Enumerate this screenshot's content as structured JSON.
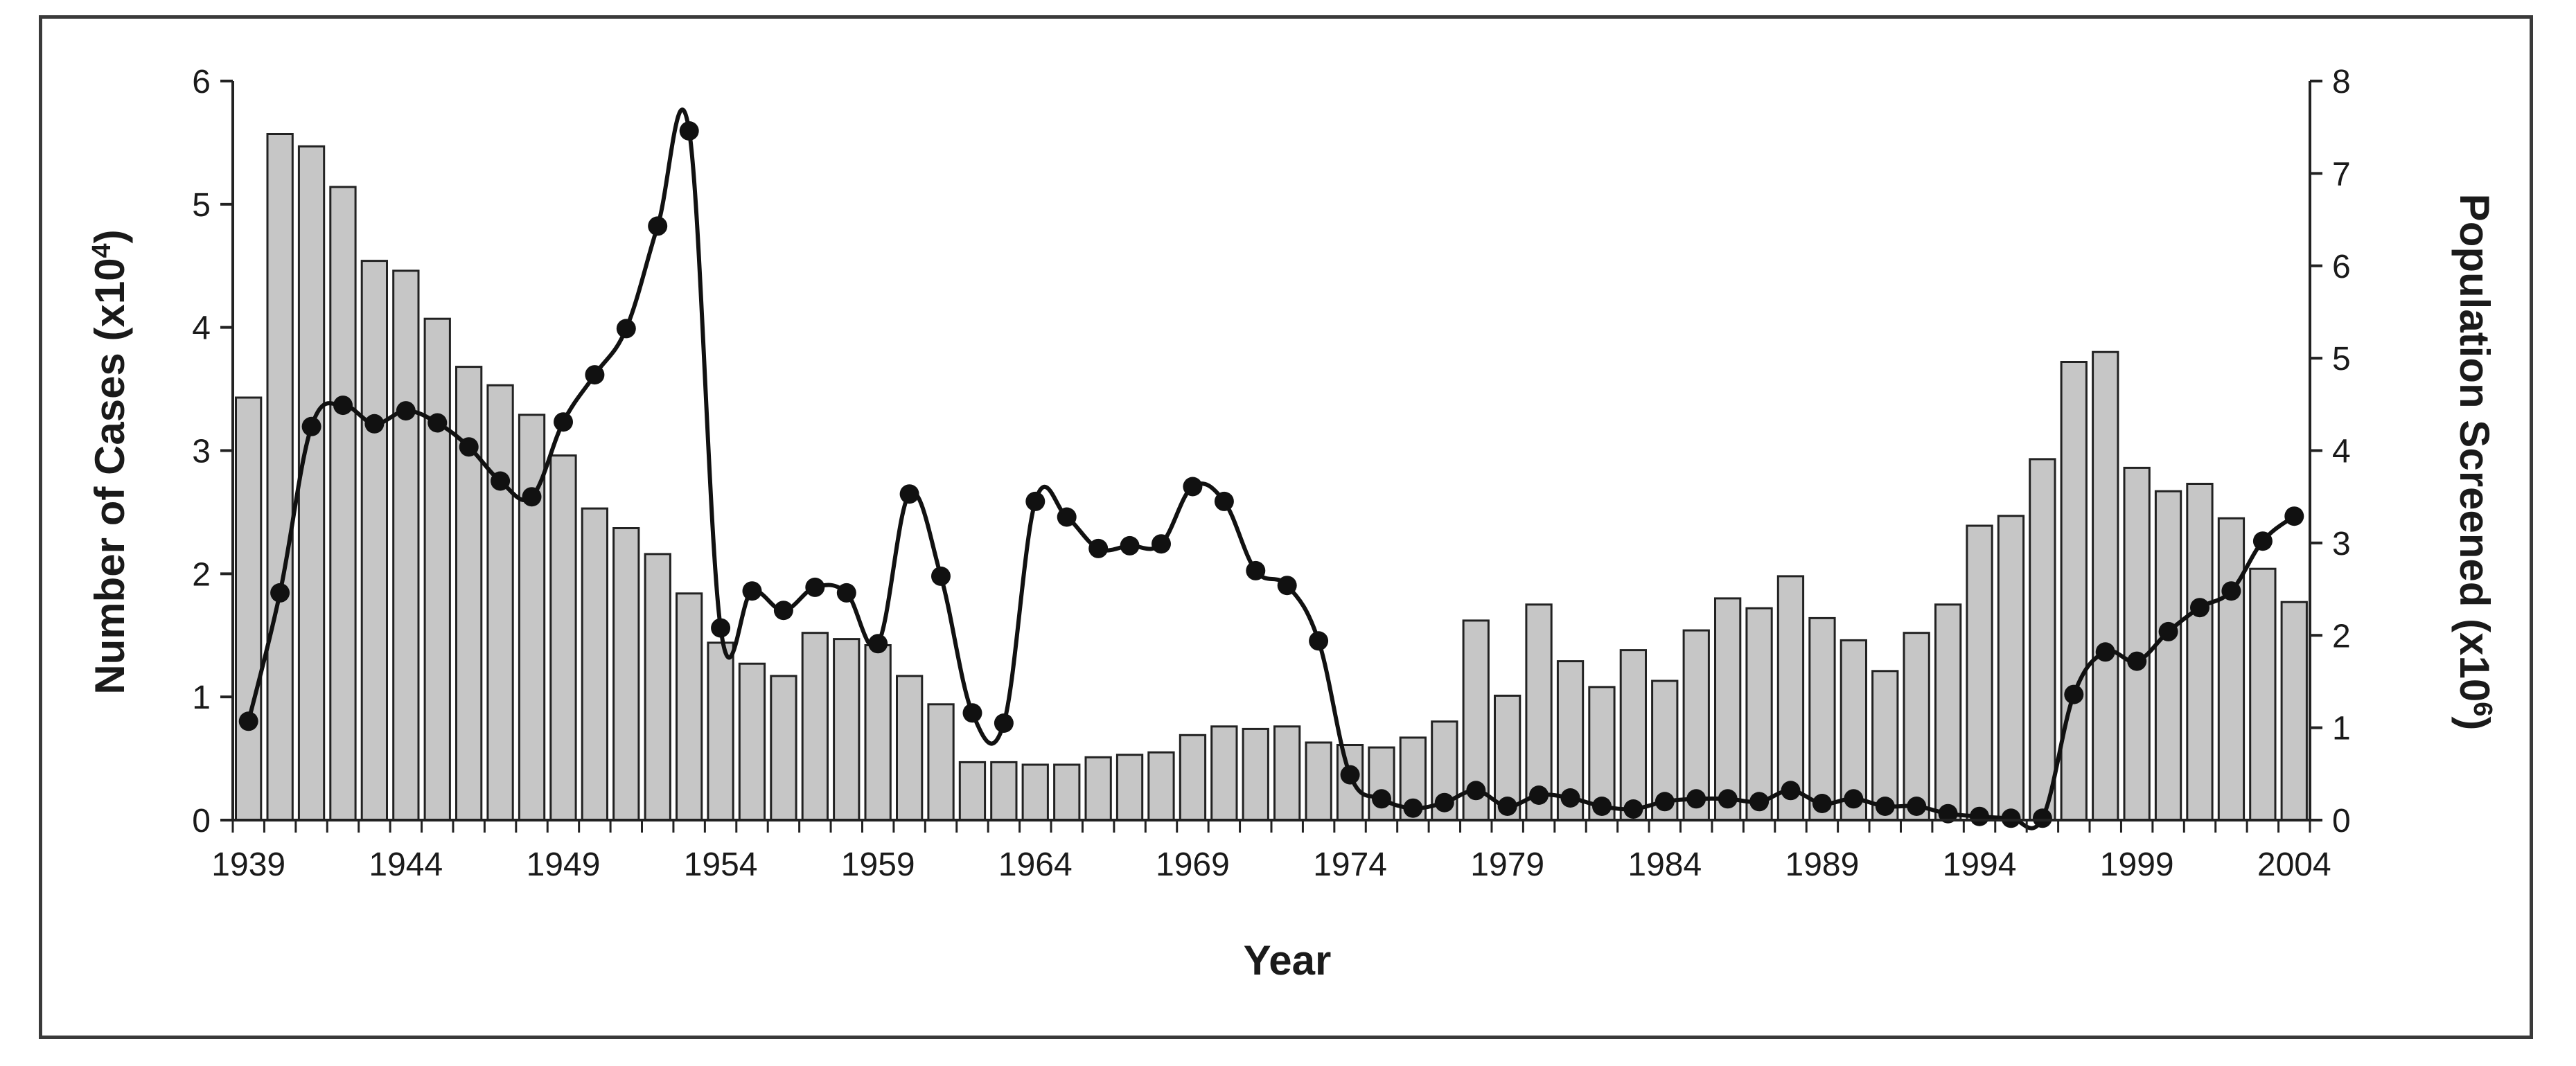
{
  "chart_data": {
    "type": "bar+line",
    "xlabel": "Year",
    "ylabel_left": {
      "text": "Number of Cases (x10",
      "sup": "4",
      "tail": ")"
    },
    "ylabel_right": {
      "text": "Population Screened (x10",
      "sup": "6",
      "tail": ")"
    },
    "x_tick_labels": [
      "1939",
      "1944",
      "1949",
      "1954",
      "1959",
      "1964",
      "1969",
      "1974",
      "1979",
      "1984",
      "1989",
      "1994",
      "1999",
      "2004"
    ],
    "left_axis": {
      "min": 0,
      "max": 6,
      "ticks": [
        0,
        1,
        2,
        3,
        4,
        5,
        6
      ]
    },
    "right_axis": {
      "min": 0,
      "max": 8,
      "ticks": [
        0,
        1,
        2,
        3,
        4,
        5,
        6,
        7,
        8
      ]
    },
    "years": [
      1939,
      1940,
      1941,
      1942,
      1943,
      1944,
      1945,
      1946,
      1947,
      1948,
      1949,
      1950,
      1951,
      1952,
      1953,
      1954,
      1955,
      1956,
      1957,
      1958,
      1959,
      1960,
      1961,
      1962,
      1963,
      1964,
      1965,
      1966,
      1967,
      1968,
      1969,
      1970,
      1971,
      1972,
      1973,
      1974,
      1975,
      1976,
      1977,
      1978,
      1979,
      1980,
      1981,
      1982,
      1983,
      1984,
      1985,
      1986,
      1987,
      1988,
      1989,
      1990,
      1991,
      1992,
      1993,
      1994,
      1995,
      1996,
      1997,
      1998,
      1999,
      2000,
      2001,
      2002,
      2003,
      2004
    ],
    "series": [
      {
        "kind": "bar",
        "axis": "left",
        "color": "#c6c6c6",
        "values": [
          3.43,
          5.57,
          5.47,
          5.14,
          4.54,
          4.46,
          4.07,
          3.68,
          3.53,
          3.29,
          2.96,
          2.53,
          2.37,
          2.16,
          1.84,
          1.44,
          1.27,
          1.17,
          1.52,
          1.47,
          1.42,
          1.17,
          0.94,
          0.47,
          0.47,
          0.45,
          0.45,
          0.51,
          0.53,
          0.55,
          0.69,
          0.76,
          0.74,
          0.76,
          0.63,
          0.61,
          0.59,
          0.67,
          0.8,
          1.62,
          1.01,
          1.75,
          1.29,
          1.08,
          1.38,
          1.13,
          1.54,
          1.8,
          1.72,
          1.98,
          1.64,
          1.46,
          1.21,
          1.52,
          1.75,
          2.39,
          2.47,
          2.93,
          3.72,
          3.8,
          2.86,
          2.67,
          2.73,
          2.45,
          2.04,
          1.77
        ]
      },
      {
        "kind": "line",
        "axis": "right",
        "color": "#111111",
        "values": [
          1.07,
          2.46,
          4.26,
          4.49,
          4.29,
          4.43,
          4.3,
          4.04,
          3.67,
          3.5,
          4.31,
          4.82,
          5.32,
          6.43,
          7.46,
          2.08,
          2.48,
          2.27,
          2.52,
          2.46,
          1.91,
          3.53,
          2.64,
          1.16,
          1.05,
          3.45,
          3.28,
          2.94,
          2.97,
          2.99,
          3.61,
          3.45,
          2.7,
          2.54,
          1.94,
          0.49,
          0.23,
          0.13,
          0.19,
          0.32,
          0.15,
          0.27,
          0.24,
          0.15,
          0.12,
          0.2,
          0.23,
          0.23,
          0.2,
          0.32,
          0.18,
          0.23,
          0.15,
          0.15,
          0.07,
          0.04,
          0.02,
          0.02,
          1.36,
          1.82,
          1.72,
          2.04,
          2.3,
          2.48,
          3.02,
          3.29
        ]
      }
    ]
  }
}
